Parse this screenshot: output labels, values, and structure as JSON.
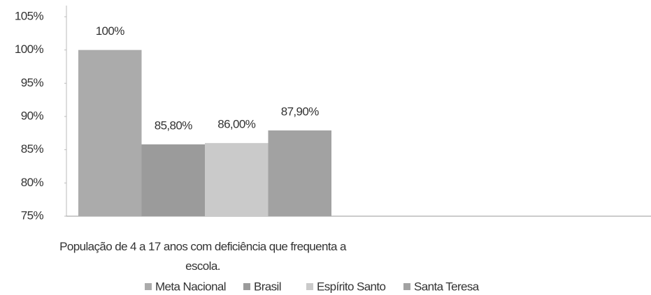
{
  "chart_data": {
    "type": "bar",
    "categories": [
      "População de 4 a 17 anos com deficiência que frequenta a escola."
    ],
    "series": [
      {
        "name": "Meta Nacional",
        "color": "#ababab",
        "values": [
          100
        ],
        "value_labels": [
          "100%"
        ]
      },
      {
        "name": "Brasil",
        "color": "#9b9b9b",
        "values": [
          85.8
        ],
        "value_labels": [
          "85,80%"
        ]
      },
      {
        "name": "Espírito Santo",
        "color": "#cacaca",
        "values": [
          86
        ],
        "value_labels": [
          "86,00%"
        ]
      },
      {
        "name": "Santa Teresa",
        "color": "#a2a2a2",
        "values": [
          87.9
        ],
        "value_labels": [
          "87,90%"
        ]
      }
    ],
    "ylim": [
      75,
      105
    ],
    "yticks": [
      {
        "value": 75,
        "label": "75%"
      },
      {
        "value": 80,
        "label": "80%"
      },
      {
        "value": 85,
        "label": "85%"
      },
      {
        "value": 90,
        "label": "90%"
      },
      {
        "value": 95,
        "label": "95%"
      },
      {
        "value": 100,
        "label": "100%"
      },
      {
        "value": 105,
        "label": "105%"
      }
    ],
    "grid": false,
    "legend": "bottom"
  }
}
